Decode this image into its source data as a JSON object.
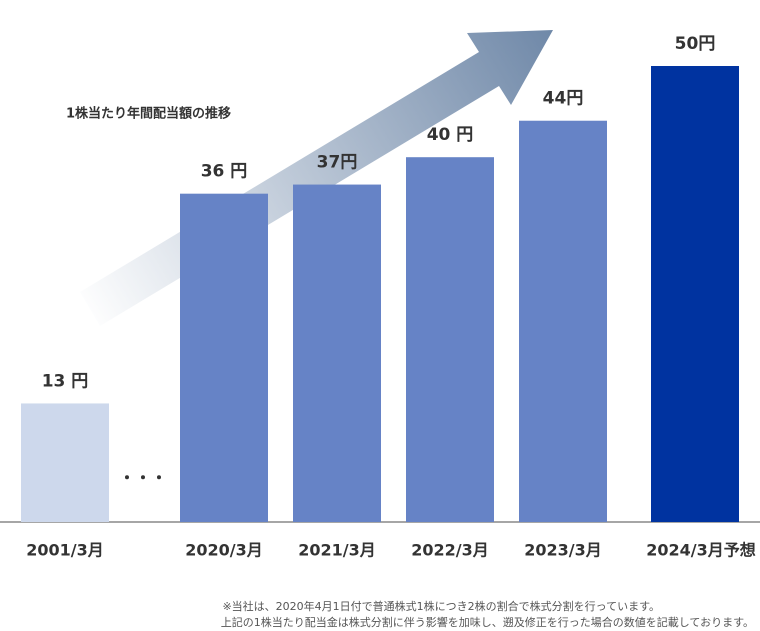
{
  "chart_data": {
    "type": "bar",
    "annotation": "1株当たり年間配当額の推移",
    "ellipsis": "・・・",
    "categories": [
      "2001/3月",
      "2020/3月",
      "2021/3月",
      "2022/3月",
      "2023/3月",
      "2024/3月予想"
    ],
    "values": [
      13,
      36,
      37,
      40,
      44,
      50
    ],
    "value_labels": [
      "13 円",
      "36 円",
      "37円",
      "40 円",
      "44円",
      "50円"
    ],
    "colors": [
      "#cdd8ec",
      "#6683c6",
      "#6683c6",
      "#6683c6",
      "#6683c6",
      "#0033a0"
    ],
    "footnotes": [
      "※当社は、2020年4月1日付で普通株式1株につき2株の割合で株式分割を行っています。",
      "上記の1株当たり配当金は株式分割に伴う影響を加味し、遡及修正を行った場合の数値を記載しております。"
    ]
  }
}
